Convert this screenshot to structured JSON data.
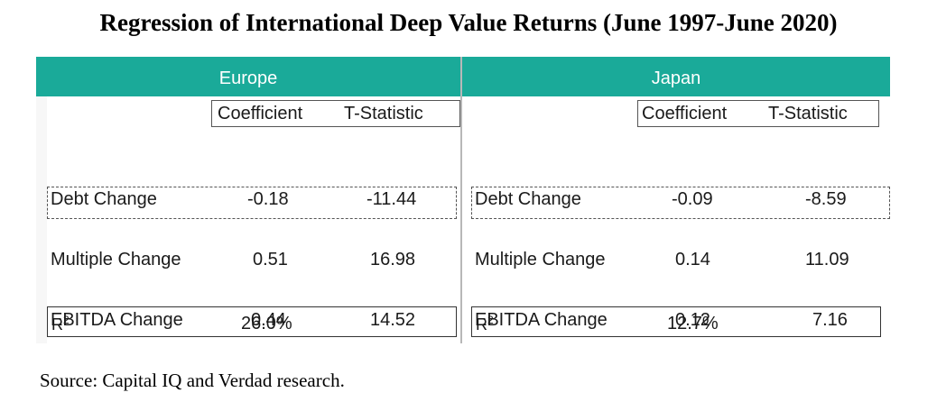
{
  "title": "Regression of International Deep Value Returns (June 1997-June 2020)",
  "columns": {
    "coefficient": "Coefficient",
    "t_statistic": "T-Statistic"
  },
  "europe": {
    "label": "Europe",
    "rows": [
      {
        "name": "Debt Change",
        "coefficient": "-0.18",
        "t_statistic": "-11.44"
      },
      {
        "name": "Multiple Change",
        "coefficient": "0.51",
        "t_statistic": "16.98"
      },
      {
        "name": "EBITDA Change",
        "coefficient": "0.44",
        "t_statistic": "14.52"
      }
    ],
    "r2_label": "R",
    "r2_sup": "2",
    "r2_value": "26.0%"
  },
  "japan": {
    "label": "Japan",
    "rows": [
      {
        "name": "Debt Change",
        "coefficient": "-0.09",
        "t_statistic": "-8.59"
      },
      {
        "name": "Multiple Change",
        "coefficient": "0.14",
        "t_statistic": "11.09"
      },
      {
        "name": "EBITDA Change",
        "coefficient": "0.12",
        "t_statistic": "7.16"
      }
    ],
    "r2_label": "R",
    "r2_sup": "2",
    "r2_value": "12.7%"
  },
  "source": "Source: Capital IQ and Verdad research.",
  "colors": {
    "header_bg": "#1aaa99",
    "header_text": "#ffffff"
  }
}
